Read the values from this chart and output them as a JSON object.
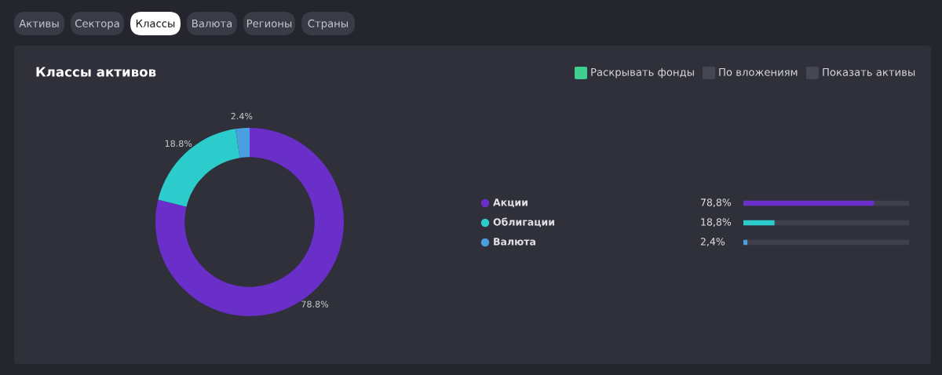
{
  "chart_data": [
    {
      "type": "donut",
      "title": "Классы активов",
      "annotations": [
        "Активы",
        "Сектора",
        "Классы",
        "Валюта",
        "Регионы",
        "Страны",
        "Раскрывать фонды",
        "По вложениям",
        "Показать активы"
      ],
      "categories": [
        "Акции",
        "Облигации",
        "Валюта"
      ],
      "values": [
        78.8,
        18.8,
        2.4
      ],
      "colors": [
        "#6a2fc9",
        "#2bcccb",
        "#4a9fe0"
      ],
      "value_labels": [
        "78.8%",
        "18.8%",
        "2.4%"
      ],
      "legend": "right"
    },
    {
      "type": "bar",
      "orientation": "horizontal",
      "categories": [
        null,
        null,
        null
      ],
      "values": [
        78.8,
        18.8,
        2.4
      ],
      "colors": [
        "#6a2fc9",
        "#2bcccb",
        "#4a9fe0"
      ],
      "value_labels": [
        "78,8%",
        "18,8%",
        "2,4%"
      ],
      "xlim": [
        0,
        100
      ],
      "tick_labels": false
    }
  ]
}
